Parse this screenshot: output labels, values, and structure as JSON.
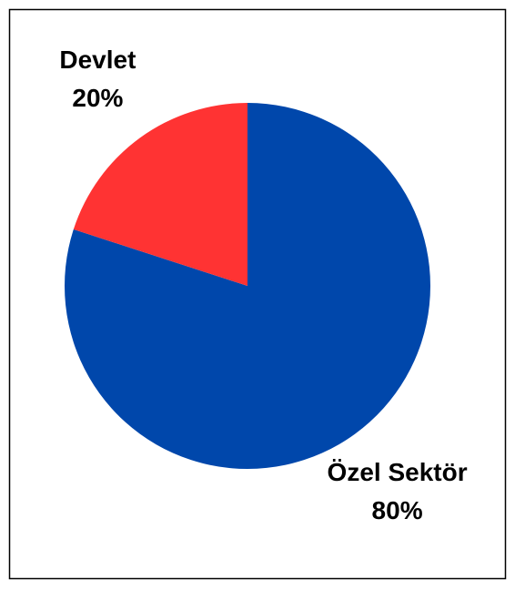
{
  "chart_data": {
    "type": "pie",
    "categories": [
      "Özel Sektör",
      "Devlet"
    ],
    "values": [
      80,
      20
    ],
    "value_labels": [
      "80%",
      "20%"
    ],
    "colors": [
      "#0047ab",
      "#ff3333"
    ]
  }
}
